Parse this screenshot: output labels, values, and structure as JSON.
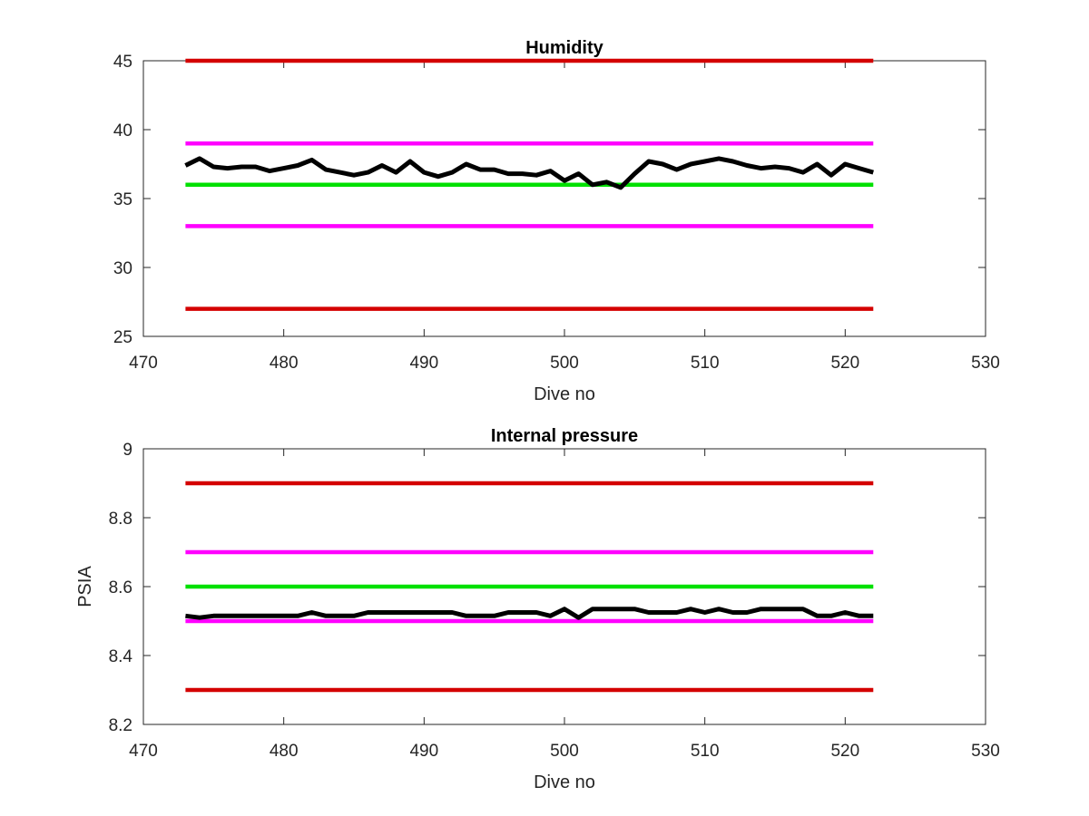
{
  "colors": {
    "data": "#000000",
    "red_limit": "#d40000",
    "magenta_limit": "#ff00ff",
    "green_target": "#00e000",
    "axis": "#262626"
  },
  "chart_data": [
    {
      "type": "line",
      "title": "Humidity",
      "xlabel": "Dive no",
      "ylabel": "",
      "xlim": [
        470,
        530
      ],
      "ylim": [
        25,
        45
      ],
      "xticks": [
        "470",
        "480",
        "490",
        "500",
        "510",
        "520",
        "530"
      ],
      "yticks": [
        "25",
        "30",
        "35",
        "40",
        "45"
      ],
      "grid": false,
      "series": [
        {
          "role": "data",
          "color": "#000000",
          "x": [
            473,
            474,
            475,
            476,
            477,
            478,
            479,
            480,
            481,
            482,
            483,
            484,
            485,
            486,
            487,
            488,
            489,
            490,
            491,
            492,
            493,
            494,
            495,
            496,
            497,
            498,
            499,
            500,
            501,
            502,
            503,
            504,
            505,
            506,
            507,
            508,
            509,
            510,
            511,
            512,
            513,
            514,
            515,
            516,
            517,
            518,
            519,
            520,
            521,
            522
          ],
          "y": [
            37.4,
            37.9,
            37.3,
            37.2,
            37.3,
            37.3,
            37.0,
            37.2,
            37.4,
            37.8,
            37.1,
            36.9,
            36.7,
            36.9,
            37.4,
            36.9,
            37.7,
            36.9,
            36.6,
            36.9,
            37.5,
            37.1,
            37.1,
            36.8,
            36.8,
            36.7,
            37.0,
            36.3,
            36.8,
            36.0,
            36.2,
            35.8,
            36.8,
            37.7,
            37.5,
            37.1,
            37.5,
            37.7,
            37.9,
            37.7,
            37.4,
            37.2,
            37.3,
            37.2,
            36.9,
            37.5,
            36.7,
            37.5,
            37.2,
            36.9
          ]
        },
        {
          "role": "limit",
          "color": "#d40000",
          "x": [
            473,
            522
          ],
          "y": [
            45,
            45
          ]
        },
        {
          "role": "limit",
          "color": "#ff00ff",
          "x": [
            473,
            522
          ],
          "y": [
            39,
            39
          ]
        },
        {
          "role": "target",
          "color": "#00e000",
          "x": [
            473,
            522
          ],
          "y": [
            36,
            36
          ]
        },
        {
          "role": "limit",
          "color": "#ff00ff",
          "x": [
            473,
            522
          ],
          "y": [
            33,
            33
          ]
        },
        {
          "role": "limit",
          "color": "#d40000",
          "x": [
            473,
            522
          ],
          "y": [
            27,
            27
          ]
        }
      ]
    },
    {
      "type": "line",
      "title": "Internal pressure",
      "xlabel": "Dive no",
      "ylabel": "PSIA",
      "xlim": [
        470,
        530
      ],
      "ylim": [
        8.2,
        9
      ],
      "xticks": [
        "470",
        "480",
        "490",
        "500",
        "510",
        "520",
        "530"
      ],
      "yticks": [
        "8.2",
        "8.4",
        "8.6",
        "8.8",
        "9"
      ],
      "grid": false,
      "series": [
        {
          "role": "data",
          "color": "#000000",
          "x": [
            473,
            474,
            475,
            476,
            477,
            478,
            479,
            480,
            481,
            482,
            483,
            484,
            485,
            486,
            487,
            488,
            489,
            490,
            491,
            492,
            493,
            494,
            495,
            496,
            497,
            498,
            499,
            500,
            501,
            502,
            503,
            504,
            505,
            506,
            507,
            508,
            509,
            510,
            511,
            512,
            513,
            514,
            515,
            516,
            517,
            518,
            519,
            520,
            521,
            522
          ],
          "y": [
            8.515,
            8.51,
            8.515,
            8.515,
            8.515,
            8.515,
            8.515,
            8.515,
            8.515,
            8.525,
            8.515,
            8.515,
            8.515,
            8.525,
            8.525,
            8.525,
            8.525,
            8.525,
            8.525,
            8.525,
            8.515,
            8.515,
            8.515,
            8.525,
            8.525,
            8.525,
            8.515,
            8.535,
            8.51,
            8.535,
            8.535,
            8.535,
            8.535,
            8.525,
            8.525,
            8.525,
            8.535,
            8.525,
            8.535,
            8.525,
            8.525,
            8.535,
            8.535,
            8.535,
            8.535,
            8.515,
            8.515,
            8.525,
            8.515,
            8.515
          ]
        },
        {
          "role": "limit",
          "color": "#d40000",
          "x": [
            473,
            522
          ],
          "y": [
            8.9,
            8.9
          ]
        },
        {
          "role": "limit",
          "color": "#ff00ff",
          "x": [
            473,
            522
          ],
          "y": [
            8.7,
            8.7
          ]
        },
        {
          "role": "target",
          "color": "#00e000",
          "x": [
            473,
            522
          ],
          "y": [
            8.6,
            8.6
          ]
        },
        {
          "role": "limit",
          "color": "#ff00ff",
          "x": [
            473,
            522
          ],
          "y": [
            8.5,
            8.5
          ]
        },
        {
          "role": "limit",
          "color": "#d40000",
          "x": [
            473,
            522
          ],
          "y": [
            8.3,
            8.3
          ]
        }
      ]
    }
  ]
}
